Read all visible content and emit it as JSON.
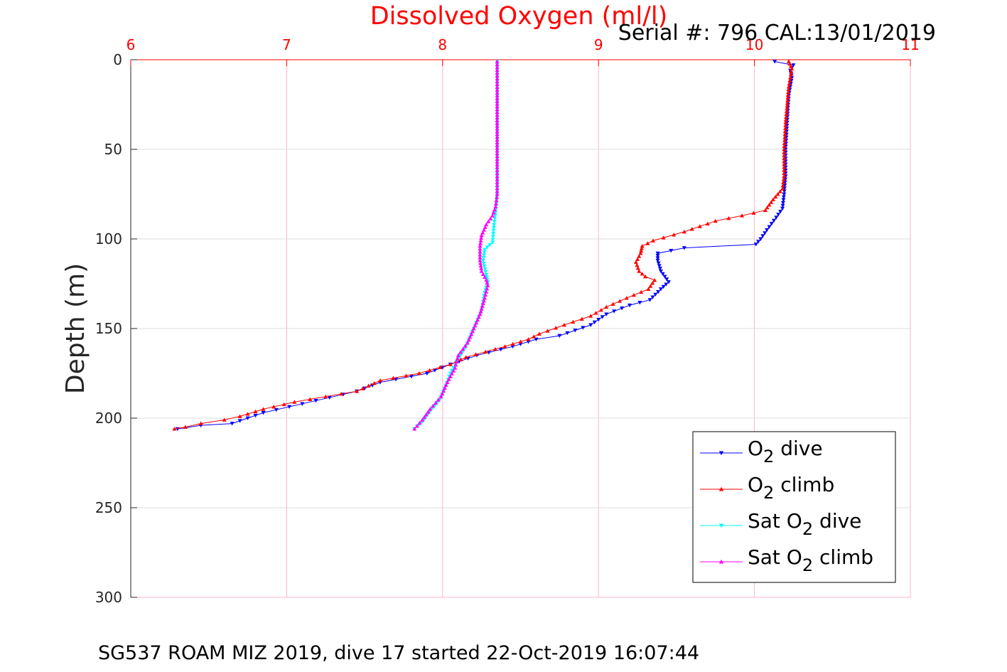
{
  "chart_data": {
    "type": "line",
    "title": "Dissolved Oxygen (ml/l)",
    "subtitle": "Serial #: 796  CAL:13/01/2019",
    "xlabel": "",
    "ylabel": "Depth (m)",
    "xlim": [
      6,
      11
    ],
    "ylim": [
      0,
      300
    ],
    "y_reversed": true,
    "x_axis_position": "top",
    "x_ticks": [
      "6",
      "7",
      "8",
      "9",
      "10",
      "11"
    ],
    "y_ticks": [
      "0",
      "50",
      "100",
      "150",
      "200",
      "250",
      "300"
    ],
    "grid": true,
    "legend_position": "bottom-right",
    "footer": "SG537 ROAM MIZ 2019, dive 17 started 22-Oct-2019 16:07:44",
    "colors": {
      "title": "#ff0000",
      "x_ticks": "#ff0000",
      "grid": "#ffb3c8"
    },
    "series": [
      {
        "name": "O2 dive",
        "legend": {
          "main": "O",
          "sub": "2",
          "suffix": " dive"
        },
        "color": "#0000ff",
        "marker": "triangle-down",
        "points": [
          [
            10.13,
            1
          ],
          [
            10.25,
            3
          ],
          [
            10.23,
            6
          ],
          [
            10.24,
            10
          ],
          [
            10.22,
            20
          ],
          [
            10.21,
            35
          ],
          [
            10.2,
            50
          ],
          [
            10.2,
            65
          ],
          [
            10.19,
            75
          ],
          [
            10.18,
            83
          ],
          [
            10.14,
            88
          ],
          [
            10.08,
            95
          ],
          [
            10.04,
            100
          ],
          [
            10.01,
            103
          ],
          [
            9.55,
            105
          ],
          [
            9.38,
            108
          ],
          [
            9.38,
            112
          ],
          [
            9.4,
            118
          ],
          [
            9.45,
            124
          ],
          [
            9.4,
            128
          ],
          [
            9.33,
            134
          ],
          [
            9.2,
            137
          ],
          [
            9.05,
            142
          ],
          [
            8.95,
            148
          ],
          [
            8.75,
            154
          ],
          [
            8.6,
            156
          ],
          [
            8.45,
            160
          ],
          [
            8.22,
            165
          ],
          [
            8.05,
            170
          ],
          [
            7.9,
            175
          ],
          [
            7.6,
            180
          ],
          [
            7.45,
            185
          ],
          [
            7.1,
            192
          ],
          [
            6.85,
            197
          ],
          [
            6.75,
            200
          ],
          [
            6.65,
            203
          ],
          [
            6.45,
            204
          ],
          [
            6.3,
            206
          ]
        ]
      },
      {
        "name": "O2 climb",
        "legend": {
          "main": "O",
          "sub": "2",
          "suffix": " climb"
        },
        "color": "#ff0000",
        "marker": "triangle-up",
        "points": [
          [
            10.22,
            1
          ],
          [
            10.24,
            5
          ],
          [
            10.22,
            15
          ],
          [
            10.2,
            35
          ],
          [
            10.19,
            50
          ],
          [
            10.19,
            65
          ],
          [
            10.18,
            72
          ],
          [
            10.12,
            78
          ],
          [
            10.07,
            84
          ],
          [
            9.92,
            87
          ],
          [
            9.75,
            90
          ],
          [
            9.55,
            96
          ],
          [
            9.35,
            101
          ],
          [
            9.28,
            104
          ],
          [
            9.27,
            108
          ],
          [
            9.24,
            113
          ],
          [
            9.26,
            118
          ],
          [
            9.3,
            121
          ],
          [
            9.36,
            123
          ],
          [
            9.32,
            128
          ],
          [
            9.18,
            133
          ],
          [
            9.05,
            138
          ],
          [
            8.95,
            143
          ],
          [
            8.78,
            148
          ],
          [
            8.62,
            153
          ],
          [
            8.55,
            156
          ],
          [
            8.4,
            160
          ],
          [
            8.15,
            166
          ],
          [
            8.05,
            170
          ],
          [
            7.85,
            175
          ],
          [
            7.6,
            179
          ],
          [
            7.45,
            185
          ],
          [
            7.05,
            191
          ],
          [
            6.85,
            195
          ],
          [
            6.7,
            199
          ],
          [
            6.6,
            201
          ],
          [
            6.45,
            203
          ],
          [
            6.35,
            205
          ],
          [
            6.28,
            206
          ]
        ]
      },
      {
        "name": "Sat O2 dive",
        "legend": {
          "main": "Sat O",
          "sub": "2",
          "suffix": " dive"
        },
        "color": "#00ffff",
        "marker": "triangle-down",
        "points": [
          [
            8.35,
            1
          ],
          [
            8.35,
            20
          ],
          [
            8.35,
            40
          ],
          [
            8.35,
            60
          ],
          [
            8.35,
            75
          ],
          [
            8.34,
            85
          ],
          [
            8.33,
            92
          ],
          [
            8.32,
            102
          ],
          [
            8.27,
            106
          ],
          [
            8.26,
            112
          ],
          [
            8.28,
            120
          ],
          [
            8.29,
            124
          ],
          [
            8.27,
            130
          ],
          [
            8.25,
            140
          ],
          [
            8.2,
            150
          ],
          [
            8.15,
            160
          ],
          [
            8.1,
            167
          ],
          [
            8.05,
            175
          ],
          [
            8.02,
            182
          ],
          [
            7.98,
            190
          ],
          [
            7.92,
            196
          ],
          [
            7.87,
            202
          ],
          [
            7.82,
            206
          ]
        ]
      },
      {
        "name": "Sat O2 climb",
        "legend": {
          "main": "Sat O",
          "sub": "2",
          "suffix": " climb"
        },
        "color": "#ff00ff",
        "marker": "triangle-up",
        "points": [
          [
            8.35,
            1
          ],
          [
            8.35,
            20
          ],
          [
            8.35,
            40
          ],
          [
            8.35,
            60
          ],
          [
            8.35,
            75
          ],
          [
            8.34,
            82
          ],
          [
            8.32,
            87
          ],
          [
            8.28,
            92
          ],
          [
            8.25,
            98
          ],
          [
            8.24,
            104
          ],
          [
            8.24,
            112
          ],
          [
            8.25,
            118
          ],
          [
            8.28,
            123
          ],
          [
            8.29,
            126
          ],
          [
            8.27,
            133
          ],
          [
            8.24,
            142
          ],
          [
            8.2,
            150
          ],
          [
            8.16,
            158
          ],
          [
            8.1,
            165
          ],
          [
            8.08,
            172
          ],
          [
            8.03,
            180
          ],
          [
            7.99,
            188
          ],
          [
            7.92,
            195
          ],
          [
            7.87,
            201
          ],
          [
            7.82,
            206
          ]
        ]
      }
    ]
  }
}
